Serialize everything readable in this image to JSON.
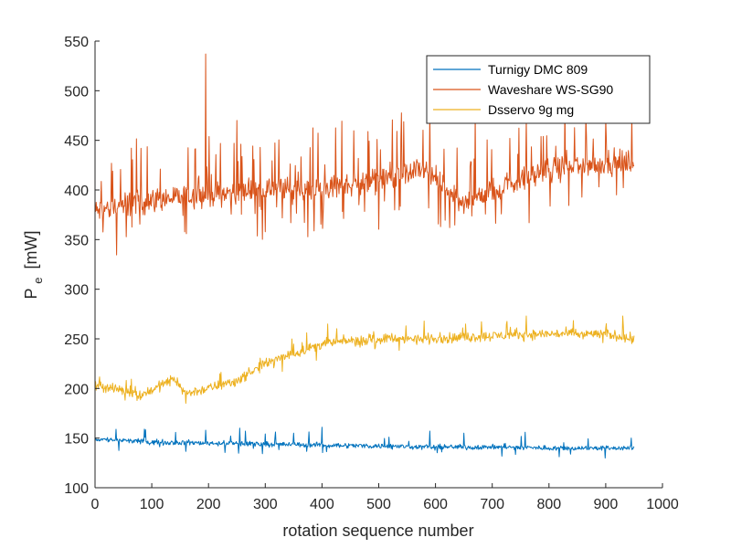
{
  "chart_data": {
    "type": "line",
    "title": "",
    "xlabel": "rotation sequence number",
    "ylabel_main": "P",
    "ylabel_sub": "e",
    "ylabel_unit": "[mW]",
    "xlim": [
      0,
      1000
    ],
    "ylim": [
      100,
      550
    ],
    "x_ticks": [
      0,
      100,
      200,
      300,
      400,
      500,
      600,
      700,
      800,
      900,
      1000
    ],
    "y_ticks": [
      100,
      150,
      200,
      250,
      300,
      350,
      400,
      450,
      500,
      550
    ],
    "grid": false,
    "legend_position": "top-right",
    "x_max_sample": 950,
    "series": [
      {
        "name": "Turnigy DMC 809",
        "color": "#0072BD",
        "trend": [
          [
            0,
            149
          ],
          [
            100,
            146
          ],
          [
            200,
            145
          ],
          [
            300,
            144
          ],
          [
            400,
            143
          ],
          [
            500,
            142
          ],
          [
            600,
            141
          ],
          [
            700,
            141
          ],
          [
            800,
            140
          ],
          [
            950,
            140
          ]
        ],
        "noise": 2.5,
        "spike_prob": 0.03,
        "spike_amp": 10,
        "spikes": [
          [
            195,
            158
          ],
          [
            255,
            160
          ],
          [
            265,
            157
          ],
          [
            400,
            161
          ],
          [
            350,
            155
          ],
          [
            590,
            157
          ],
          [
            650,
            155
          ],
          [
            945,
            150
          ]
        ]
      },
      {
        "name": "Waveshare WS-SG90",
        "color": "#D95319",
        "trend": [
          [
            0,
            378
          ],
          [
            50,
            385
          ],
          [
            100,
            390
          ],
          [
            200,
            395
          ],
          [
            300,
            400
          ],
          [
            400,
            402
          ],
          [
            500,
            410
          ],
          [
            580,
            420
          ],
          [
            620,
            400
          ],
          [
            640,
            385
          ],
          [
            700,
            400
          ],
          [
            800,
            420
          ],
          [
            900,
            428
          ],
          [
            950,
            428
          ]
        ],
        "noise": 12,
        "spike_prob": 0.14,
        "spike_amp": 45,
        "spikes": [
          [
            195,
            537
          ],
          [
            590,
            478
          ],
          [
            670,
            478
          ],
          [
            760,
            472
          ],
          [
            900,
            472
          ],
          [
            250,
            470
          ],
          [
            625,
            362
          ]
        ]
      },
      {
        "name": "Dsservo 9g mg",
        "color": "#EDB120",
        "trend": [
          [
            0,
            203
          ],
          [
            50,
            198
          ],
          [
            80,
            193
          ],
          [
            140,
            210
          ],
          [
            160,
            195
          ],
          [
            200,
            200
          ],
          [
            250,
            208
          ],
          [
            300,
            225
          ],
          [
            350,
            235
          ],
          [
            400,
            245
          ],
          [
            450,
            248
          ],
          [
            500,
            250
          ],
          [
            600,
            250
          ],
          [
            700,
            253
          ],
          [
            800,
            255
          ],
          [
            900,
            255
          ],
          [
            950,
            250
          ]
        ],
        "noise": 5,
        "spike_prob": 0.05,
        "spike_amp": 12,
        "spikes": [
          [
            160,
            185
          ],
          [
            760,
            273
          ],
          [
            930,
            273
          ],
          [
            410,
            265
          ],
          [
            580,
            268
          ]
        ]
      }
    ]
  }
}
